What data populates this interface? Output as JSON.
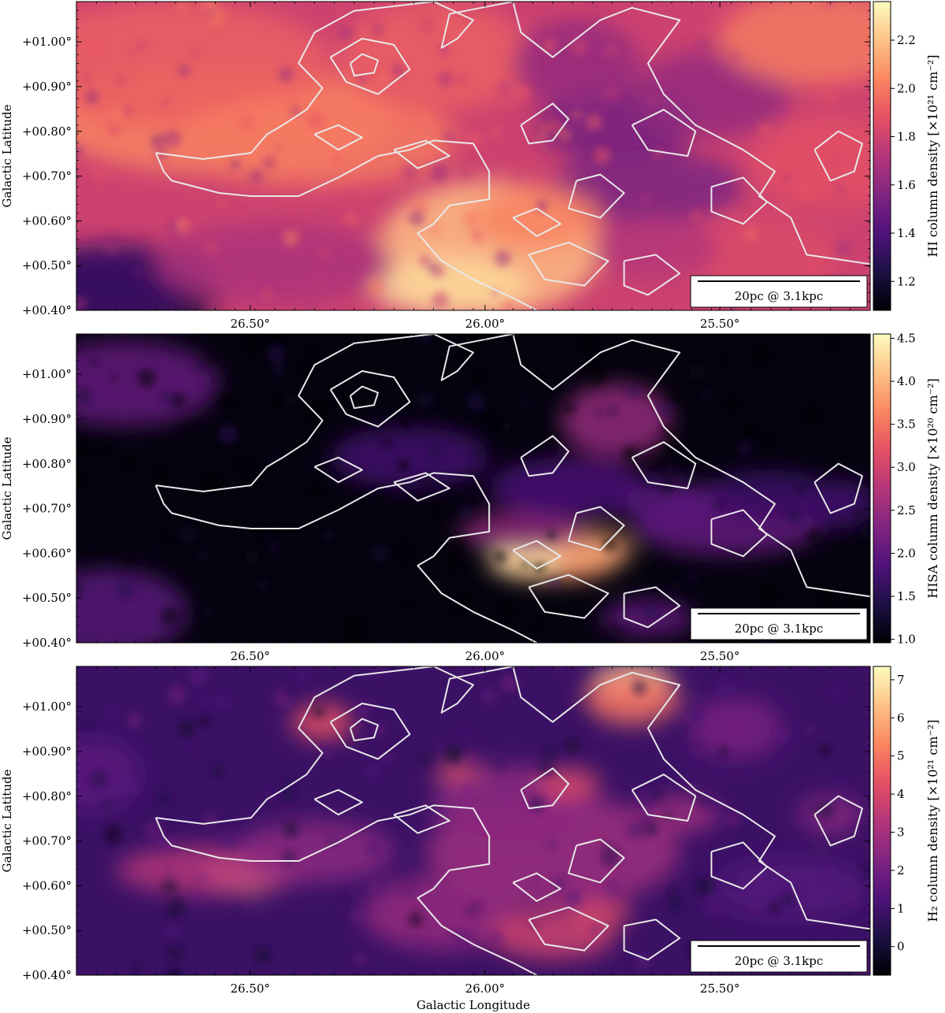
{
  "chart_data": [
    {
      "type": "heatmap",
      "panel": "HI",
      "colorbar_label": "HI column density [×10²¹ cm⁻²]",
      "colorbar_ticks": [
        "1.2",
        "1.4",
        "1.6",
        "1.8",
        "2.0",
        "2.2"
      ],
      "colorbar_range": [
        1.08,
        2.36
      ],
      "colormap": "magma",
      "ylabel": "Galactic Latitude",
      "xlabel": "",
      "yticks": [
        "+00.40°",
        "+00.50°",
        "+00.60°",
        "+00.70°",
        "+00.80°",
        "+00.90°",
        "+01.00°"
      ],
      "xticks": [
        "26.50°",
        "26.00°",
        "25.50°"
      ],
      "xlim": [
        26.87,
        25.18
      ],
      "ylim": [
        0.4,
        1.09
      ],
      "scalebar": "20pc @ 3.1kpc"
    },
    {
      "type": "heatmap",
      "panel": "HISA",
      "colorbar_label": "HISA column density [×10²⁰ cm⁻²]",
      "colorbar_ticks": [
        "1.0",
        "1.5",
        "2.0",
        "2.5",
        "3.0",
        "3.5",
        "4.0",
        "4.5"
      ],
      "colorbar_range": [
        0.96,
        4.55
      ],
      "colormap": "magma",
      "ylabel": "Galactic Latitude",
      "xlabel": "",
      "yticks": [
        "+00.40°",
        "+00.50°",
        "+00.60°",
        "+00.70°",
        "+00.80°",
        "+00.90°",
        "+01.00°"
      ],
      "xticks": [
        "26.50°",
        "26.00°",
        "25.50°"
      ],
      "xlim": [
        26.87,
        25.18
      ],
      "ylim": [
        0.4,
        1.09
      ],
      "scalebar": "20pc @ 3.1kpc"
    },
    {
      "type": "heatmap",
      "panel": "H2",
      "colorbar_label": "H₂ column density [×10²¹ cm⁻²]",
      "colorbar_ticks": [
        "0",
        "1",
        "2",
        "3",
        "4",
        "5",
        "6",
        "7"
      ],
      "colorbar_range": [
        -0.75,
        7.35
      ],
      "colormap": "magma",
      "ylabel": "Galactic Latitude",
      "xlabel": "Galactic Longitude",
      "yticks": [
        "+00.40°",
        "+00.50°",
        "+00.60°",
        "+00.70°",
        "+00.80°",
        "+00.90°",
        "+01.00°"
      ],
      "xticks": [
        "26.50°",
        "26.00°",
        "25.50°"
      ],
      "xlim": [
        26.87,
        25.18
      ],
      "ylim": [
        0.4,
        1.09
      ],
      "scalebar": "20pc @ 3.1kpc"
    }
  ],
  "contour_color": "#e8e8e8",
  "magma_stops": [
    "#000004",
    "#1c1044",
    "#4f127b",
    "#812581",
    "#b5367a",
    "#e55064",
    "#fb8761",
    "#fec287",
    "#fcfdbf"
  ]
}
